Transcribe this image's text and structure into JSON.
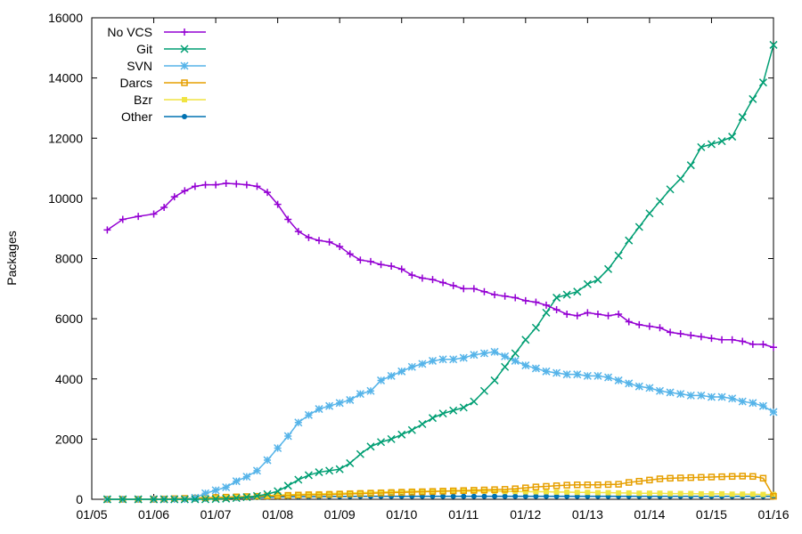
{
  "chart_data": {
    "type": "line",
    "title": "",
    "xlabel": "",
    "ylabel": "Packages",
    "ylim": [
      0,
      16000
    ],
    "yticks": [
      0,
      2000,
      4000,
      6000,
      8000,
      10000,
      12000,
      14000,
      16000
    ],
    "xlim": [
      "2005-01",
      "2016-01"
    ],
    "xticks": [
      "01/05",
      "01/06",
      "01/07",
      "01/08",
      "01/09",
      "01/10",
      "01/11",
      "01/12",
      "01/13",
      "01/14",
      "01/15",
      "01/16"
    ],
    "grid": false,
    "legend": "top-left",
    "x": [
      "2005-04",
      "2005-07",
      "2005-10",
      "2006-01",
      "2006-03",
      "2006-05",
      "2006-07",
      "2006-09",
      "2006-11",
      "2007-01",
      "2007-03",
      "2007-05",
      "2007-07",
      "2007-09",
      "2007-11",
      "2008-01",
      "2008-03",
      "2008-05",
      "2008-07",
      "2008-09",
      "2008-11",
      "2009-01",
      "2009-03",
      "2009-05",
      "2009-07",
      "2009-09",
      "2009-11",
      "2010-01",
      "2010-03",
      "2010-05",
      "2010-07",
      "2010-09",
      "2010-11",
      "2011-01",
      "2011-03",
      "2011-05",
      "2011-07",
      "2011-09",
      "2011-11",
      "2012-01",
      "2012-03",
      "2012-05",
      "2012-07",
      "2012-09",
      "2012-11",
      "2013-01",
      "2013-03",
      "2013-05",
      "2013-07",
      "2013-09",
      "2013-11",
      "2014-01",
      "2014-03",
      "2014-05",
      "2014-07",
      "2014-09",
      "2014-11",
      "2015-01",
      "2015-03",
      "2015-05",
      "2015-07",
      "2015-09",
      "2015-11",
      "2016-01"
    ],
    "series": [
      {
        "name": "No VCS",
        "color": "#9400d3",
        "marker": "plus",
        "values": [
          8950,
          9300,
          9400,
          9480,
          9700,
          10050,
          10250,
          10400,
          10450,
          10450,
          10500,
          10480,
          10450,
          10400,
          10200,
          9800,
          9300,
          8900,
          8700,
          8600,
          8550,
          8400,
          8150,
          7950,
          7900,
          7800,
          7750,
          7650,
          7450,
          7350,
          7300,
          7200,
          7100,
          7000,
          7000,
          6900,
          6800,
          6750,
          6700,
          6600,
          6550,
          6450,
          6300,
          6150,
          6100,
          6200,
          6150,
          6100,
          6150,
          5900,
          5800,
          5750,
          5700,
          5550,
          5500,
          5450,
          5400,
          5350,
          5300,
          5300,
          5250,
          5150,
          5150,
          5050
        ]
      },
      {
        "name": "Git",
        "color": "#009e73",
        "marker": "cross",
        "values": [
          0,
          0,
          0,
          0,
          0,
          0,
          0,
          0,
          0,
          10,
          20,
          40,
          70,
          110,
          170,
          270,
          450,
          650,
          800,
          900,
          950,
          1000,
          1200,
          1500,
          1750,
          1900,
          2000,
          2150,
          2300,
          2500,
          2700,
          2850,
          2950,
          3050,
          3250,
          3600,
          3950,
          4400,
          4850,
          5300,
          5700,
          6200,
          6700,
          6800,
          6900,
          7150,
          7300,
          7650,
          8100,
          8600,
          9050,
          9500,
          9900,
          10300,
          10650,
          11100,
          11700,
          11800,
          11900,
          12050,
          12700,
          13300,
          13850,
          15100
        ]
      },
      {
        "name": "SVN",
        "color": "#56b4e9",
        "marker": "star",
        "values": [
          0,
          0,
          0,
          0,
          0,
          0,
          0,
          50,
          200,
          300,
          400,
          600,
          750,
          950,
          1300,
          1700,
          2100,
          2550,
          2800,
          3000,
          3100,
          3200,
          3300,
          3500,
          3600,
          3950,
          4100,
          4250,
          4400,
          4500,
          4600,
          4650,
          4650,
          4700,
          4800,
          4850,
          4900,
          4750,
          4600,
          4450,
          4350,
          4250,
          4200,
          4150,
          4150,
          4100,
          4100,
          4050,
          3950,
          3850,
          3750,
          3700,
          3600,
          3550,
          3500,
          3450,
          3450,
          3400,
          3400,
          3350,
          3250,
          3200,
          3100,
          2900
        ]
      },
      {
        "name": "Darcs",
        "color": "#e69f00",
        "marker": "square",
        "values": [
          0,
          0,
          0,
          0,
          10,
          20,
          30,
          40,
          50,
          60,
          70,
          80,
          90,
          100,
          110,
          120,
          130,
          140,
          150,
          150,
          160,
          170,
          180,
          190,
          200,
          210,
          220,
          230,
          240,
          250,
          260,
          270,
          280,
          290,
          300,
          310,
          320,
          330,
          350,
          380,
          410,
          430,
          450,
          470,
          480,
          480,
          480,
          490,
          500,
          560,
          600,
          640,
          680,
          700,
          710,
          720,
          730,
          740,
          750,
          760,
          770,
          760,
          700,
          100
        ]
      },
      {
        "name": "Bzr",
        "color": "#f0e442",
        "marker": "filled-square",
        "values": [
          0,
          0,
          0,
          0,
          5,
          10,
          15,
          20,
          30,
          40,
          50,
          60,
          80,
          100,
          120,
          140,
          150,
          160,
          170,
          180,
          190,
          200,
          210,
          220,
          230,
          240,
          250,
          260,
          270,
          270,
          270,
          270,
          270,
          270,
          270,
          270,
          270,
          260,
          260,
          250,
          250,
          250,
          240,
          240,
          230,
          230,
          220,
          220,
          210,
          210,
          200,
          200,
          200,
          190,
          190,
          190,
          180,
          180,
          180,
          170,
          170,
          170,
          160,
          160
        ]
      },
      {
        "name": "Other",
        "color": "#0072b2",
        "marker": "filled-circle",
        "values": [
          0,
          0,
          0,
          0,
          0,
          0,
          0,
          5,
          10,
          20,
          30,
          40,
          50,
          60,
          70,
          80,
          85,
          90,
          90,
          90,
          95,
          95,
          95,
          100,
          100,
          100,
          100,
          100,
          100,
          100,
          100,
          100,
          100,
          100,
          100,
          100,
          100,
          100,
          100,
          100,
          100,
          100,
          100,
          100,
          100,
          100,
          100,
          100,
          100,
          100,
          100,
          100,
          100,
          100,
          100,
          100,
          100,
          100,
          100,
          100,
          100,
          100,
          100,
          100
        ]
      }
    ]
  }
}
